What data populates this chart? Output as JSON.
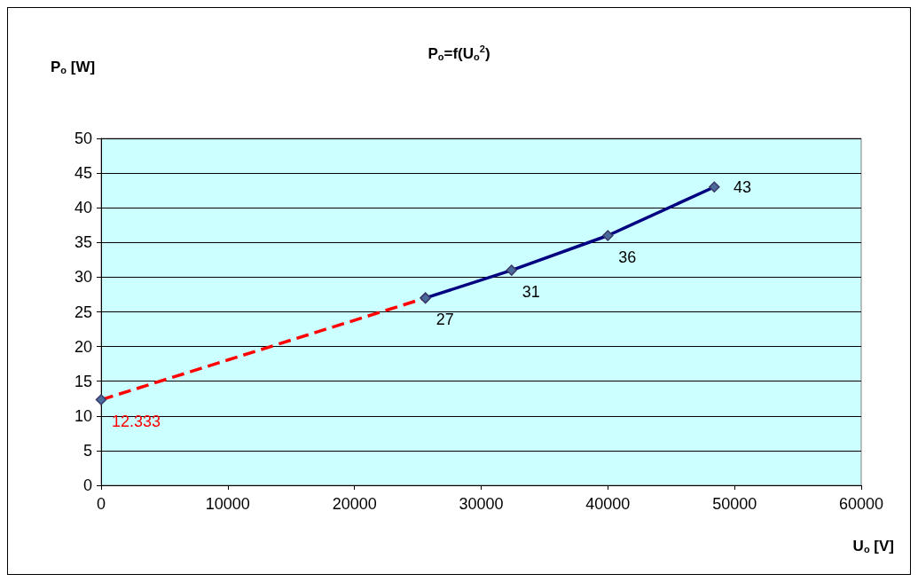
{
  "chart_data": {
    "type": "line",
    "title": "P$_{o}$=f(U$_{o}$$^{2}$)",
    "xlabel": "U$_{o}$ [V]",
    "ylabel": "P$_{o}$ [W]",
    "series": [
      {
        "color": "#ff0000",
        "x": [
          0,
          25600
        ],
        "values": [
          12.333,
          27
        ],
        "value_labels": [
          "12.333",
          null
        ],
        "line_style": "dashed"
      },
      {
        "color": "#000080",
        "x": [
          25600,
          32400,
          40000,
          48400
        ],
        "values": [
          27,
          31,
          36,
          43
        ],
        "value_labels": [
          "27",
          "31",
          "36",
          "43"
        ],
        "line_style": "solid"
      }
    ],
    "xlim": [
      0,
      60000
    ],
    "xticks": [
      0,
      10000,
      20000,
      30000,
      40000,
      50000,
      60000
    ],
    "ylim": [
      0,
      50
    ],
    "yticks": [
      0,
      5,
      10,
      15,
      20,
      25,
      30,
      35,
      40,
      45,
      50
    ],
    "grid": "y",
    "marker": "diamond"
  }
}
